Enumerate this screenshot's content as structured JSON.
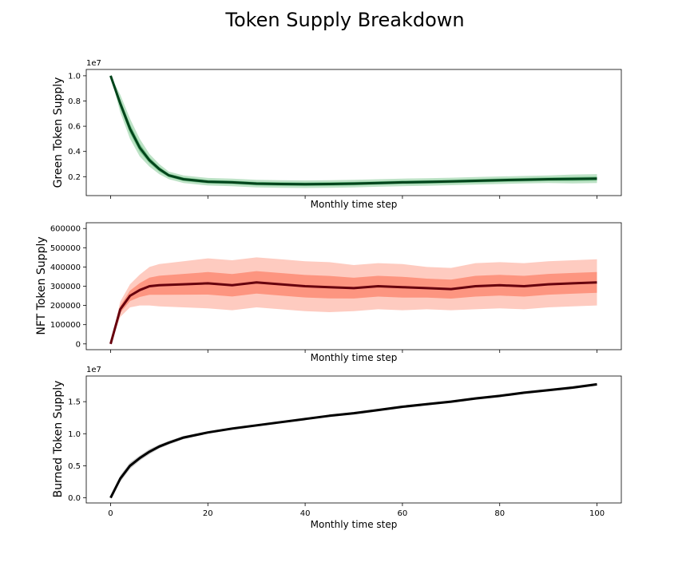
{
  "title": "Token Supply Breakdown",
  "chart_data": [
    {
      "type": "line",
      "id": "green",
      "ylabel": "Green Token Supply",
      "xlabel": "Monthly time step",
      "offset_text": "1e7",
      "xlim": [
        -5,
        105
      ],
      "ylim": [
        0.05,
        1.05
      ],
      "yticks": [
        0.2,
        0.4,
        0.6,
        0.8,
        1.0
      ],
      "ytick_labels": [
        "0.2",
        "0.4",
        "0.6",
        "0.8",
        "1.0"
      ],
      "xticks": [
        0,
        20,
        40,
        60,
        80,
        100
      ],
      "xtick_labels": [],
      "color": "#00441b",
      "band_color": "#41ab5d",
      "x": [
        0,
        2,
        4,
        6,
        8,
        10,
        12,
        15,
        20,
        25,
        30,
        35,
        40,
        45,
        50,
        55,
        60,
        65,
        70,
        75,
        80,
        85,
        90,
        95,
        100
      ],
      "median": [
        1.0,
        0.78,
        0.58,
        0.43,
        0.33,
        0.26,
        0.21,
        0.18,
        0.16,
        0.155,
        0.145,
        0.142,
        0.14,
        0.142,
        0.145,
        0.15,
        0.155,
        0.158,
        0.162,
        0.167,
        0.172,
        0.176,
        0.18,
        0.182,
        0.185
      ],
      "spread": [
        0.0,
        0.07,
        0.08,
        0.07,
        0.05,
        0.04,
        0.03,
        0.03,
        0.03,
        0.03,
        0.03,
        0.03,
        0.03,
        0.03,
        0.03,
        0.03,
        0.03,
        0.03,
        0.03,
        0.03,
        0.03,
        0.03,
        0.03,
        0.035,
        0.035
      ],
      "grid": false,
      "legend": "none"
    },
    {
      "type": "line",
      "id": "nft",
      "ylabel": "NFT Token Supply",
      "xlabel": "Monthly time step",
      "offset_text": "",
      "xlim": [
        -5,
        105
      ],
      "ylim": [
        -30000,
        630000
      ],
      "yticks": [
        0,
        100000,
        200000,
        300000,
        400000,
        500000,
        600000
      ],
      "ytick_labels": [
        "0",
        "100000",
        "200000",
        "300000",
        "400000",
        "500000",
        "600000"
      ],
      "xticks": [
        0,
        20,
        40,
        60,
        80,
        100
      ],
      "xtick_labels": [],
      "color": "#67000d",
      "band_color": "#fb6a4a",
      "x": [
        0,
        2,
        4,
        6,
        8,
        10,
        15,
        20,
        25,
        30,
        35,
        40,
        45,
        50,
        55,
        60,
        65,
        70,
        75,
        80,
        85,
        90,
        95,
        100
      ],
      "median": [
        0,
        180000,
        250000,
        280000,
        300000,
        305000,
        310000,
        315000,
        305000,
        320000,
        310000,
        300000,
        295000,
        290000,
        300000,
        295000,
        290000,
        285000,
        300000,
        305000,
        300000,
        310000,
        315000,
        320000
      ],
      "spread": [
        0,
        40000,
        60000,
        80000,
        100000,
        110000,
        120000,
        130000,
        130000,
        130000,
        130000,
        130000,
        130000,
        120000,
        120000,
        120000,
        110000,
        110000,
        120000,
        120000,
        120000,
        120000,
        120000,
        120000
      ],
      "grid": false,
      "legend": "none"
    },
    {
      "type": "line",
      "id": "burned",
      "ylabel": "Burned Token Supply",
      "xlabel": "Monthly time step",
      "offset_text": "1e7",
      "xlim": [
        -5,
        105
      ],
      "ylim": [
        -0.08,
        1.9
      ],
      "yticks": [
        0.0,
        0.5,
        1.0,
        1.5
      ],
      "ytick_labels": [
        "0.0",
        "0.5",
        "1.0",
        "1.5"
      ],
      "xticks": [
        0,
        20,
        40,
        60,
        80,
        100
      ],
      "xtick_labels": [
        "0",
        "20",
        "40",
        "60",
        "80",
        "100"
      ],
      "color": "#000000",
      "band_color": "#737373",
      "x": [
        0,
        2,
        4,
        6,
        8,
        10,
        12,
        15,
        20,
        25,
        30,
        35,
        40,
        45,
        50,
        55,
        60,
        65,
        70,
        75,
        80,
        85,
        90,
        95,
        100
      ],
      "median": [
        0.0,
        0.3,
        0.5,
        0.62,
        0.72,
        0.8,
        0.86,
        0.94,
        1.02,
        1.08,
        1.13,
        1.18,
        1.23,
        1.28,
        1.32,
        1.37,
        1.42,
        1.46,
        1.5,
        1.55,
        1.59,
        1.64,
        1.68,
        1.72,
        1.77
      ],
      "spread": [
        0.0,
        0.05,
        0.05,
        0.04,
        0.04,
        0.03,
        0.03,
        0.025,
        0.02,
        0.02,
        0.02,
        0.02,
        0.02,
        0.02,
        0.02,
        0.02,
        0.02,
        0.02,
        0.02,
        0.02,
        0.02,
        0.02,
        0.02,
        0.02,
        0.02
      ],
      "grid": false,
      "legend": "none"
    }
  ]
}
